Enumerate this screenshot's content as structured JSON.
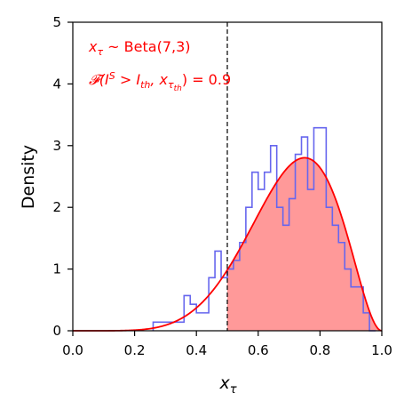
{
  "chart_data": {
    "type": "area",
    "title": "",
    "xlabel": "x_τ",
    "ylabel": "Density",
    "xlim": [
      0.0,
      1.0
    ],
    "ylim": [
      0,
      5
    ],
    "grid": false,
    "xticks": [
      "0.0",
      "0.2",
      "0.4",
      "0.6",
      "0.8",
      "1.0"
    ],
    "yticks": [
      "0",
      "1",
      "2",
      "3",
      "4",
      "5"
    ],
    "annotations": [
      "x_τ ~ Beta(7,3)",
      "𝓕(I^S > I_th, x_τth) = 0.9"
    ],
    "threshold_x": 0.5,
    "pdf": {
      "distribution": "Beta",
      "alpha": 7,
      "beta": 3,
      "color": "#ff0000"
    },
    "shaded_region": {
      "x_from": 0.5,
      "x_to": 1.0,
      "color": "#ff9999"
    },
    "histogram": {
      "color": "#6666ee",
      "x": [
        0.27,
        0.29,
        0.31,
        0.33,
        0.35,
        0.37,
        0.39,
        0.41,
        0.43,
        0.45,
        0.47,
        0.49,
        0.51,
        0.53,
        0.55,
        0.57,
        0.59,
        0.61,
        0.63,
        0.65,
        0.67,
        0.69,
        0.71,
        0.73,
        0.75,
        0.77,
        0.79,
        0.81,
        0.83,
        0.85,
        0.87,
        0.89,
        0.91,
        0.93,
        0.95,
        0.97
      ],
      "values": [
        0.14,
        0.14,
        0.14,
        0.14,
        0.14,
        0.57,
        0.43,
        0.29,
        0.29,
        0.86,
        1.29,
        0.86,
        1.0,
        1.14,
        1.43,
        2.0,
        2.57,
        2.29,
        2.57,
        3.0,
        2.0,
        1.71,
        2.14,
        2.86,
        3.14,
        2.29,
        3.29,
        3.29,
        2.0,
        1.71,
        1.43,
        1.0,
        0.71,
        0.71,
        0.29,
        0.0
      ]
    }
  }
}
